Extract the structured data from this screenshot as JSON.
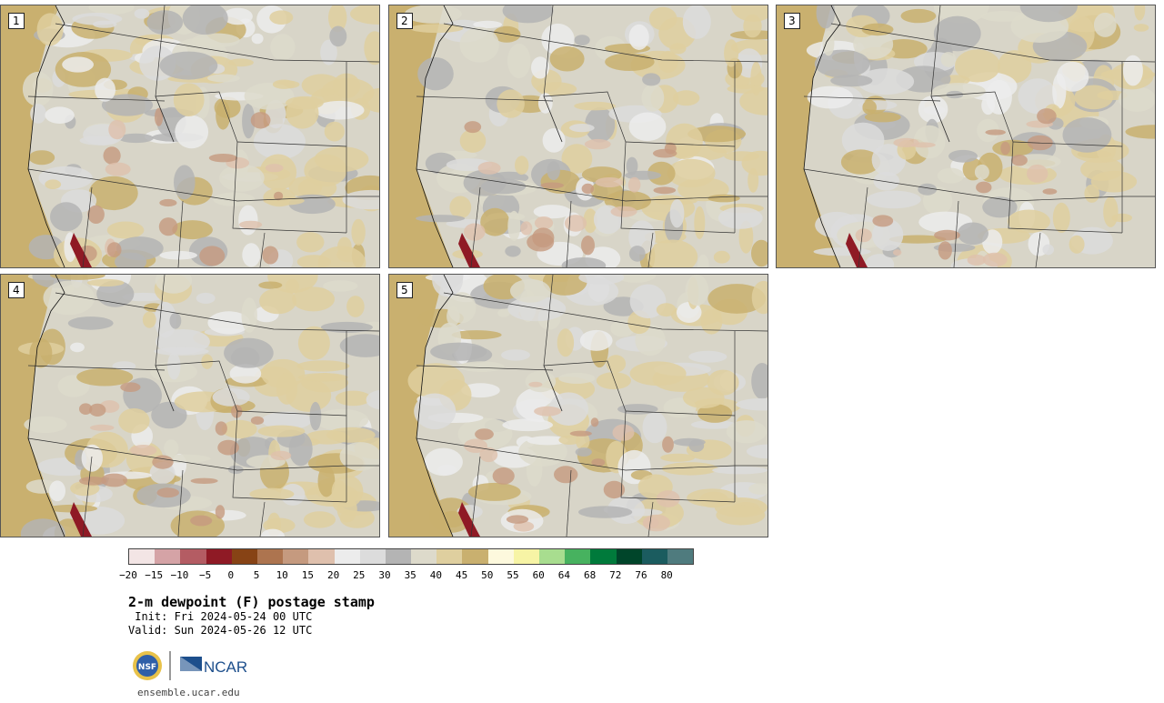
{
  "panels": [
    {
      "member": "1"
    },
    {
      "member": "2"
    },
    {
      "member": "3"
    },
    {
      "member": "4"
    },
    {
      "member": "5"
    }
  ],
  "colorbar": {
    "colors": [
      "#f3e5e5",
      "#d5a3a6",
      "#b45c63",
      "#8f1a25",
      "#874315",
      "#ad744f",
      "#c59a7f",
      "#dfc0ad",
      "#ececec",
      "#dcdcdc",
      "#b4b4b4",
      "#dddacb",
      "#dfcf9f",
      "#c9b06f",
      "#fdf9dd",
      "#f7f4a5",
      "#a8dd8f",
      "#47b25f",
      "#007a3b",
      "#00452a",
      "#1b5c5f",
      "#4f7b7e"
    ],
    "tick_labels": [
      "−20",
      "−15",
      "−10",
      "−5",
      "0",
      "5",
      "10",
      "15",
      "20",
      "25",
      "30",
      "35",
      "40",
      "45",
      "50",
      "55",
      "60",
      "64",
      "68",
      "72",
      "76",
      "80"
    ]
  },
  "title": "2-m dewpoint (F) postage stamp",
  "init_text": " Init: Fri 2024-05-24 00 UTC",
  "valid_text": "Valid: Sun 2024-05-26 12 UTC",
  "logo_text": {
    "nsf": "NSF",
    "ncar": "NCAR"
  },
  "url": "ensemble.ucar.edu"
}
